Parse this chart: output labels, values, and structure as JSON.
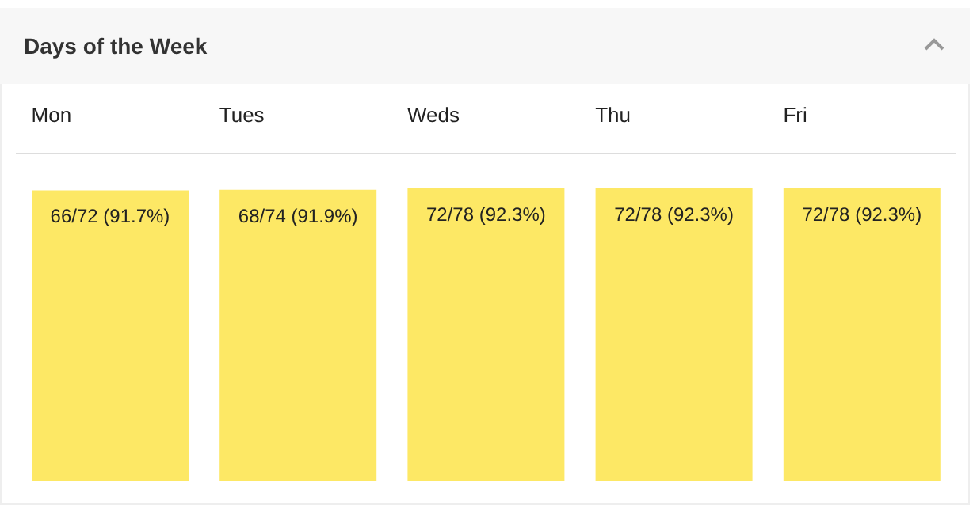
{
  "chart_data": {
    "type": "bar",
    "title": "Days of the Week",
    "categories": [
      "Mon",
      "Tues",
      "Weds",
      "Thu",
      "Fri"
    ],
    "values": [
      91.7,
      91.9,
      92.3,
      92.3,
      92.3
    ],
    "value_labels": [
      "66/72 (91.7%)",
      "68/74 (91.9%)",
      "72/78 (92.3%)",
      "72/78 (92.3%)",
      "72/78 (92.3%)"
    ],
    "color": "#fde865"
  }
}
